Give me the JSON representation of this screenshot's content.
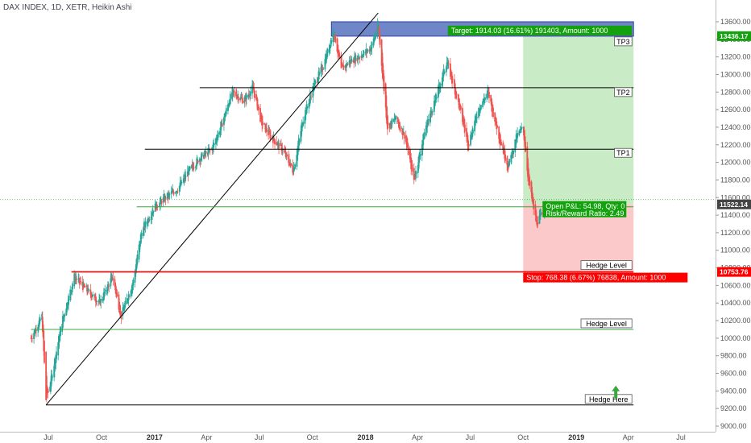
{
  "symbol_title": "DAX INDEX, 1D, XETR, Heikin Ashi",
  "chart_data": {
    "type": "candlestick",
    "title": "DAX INDEX, 1D, XETR, Heikin Ashi",
    "ylim": [
      9000,
      13800
    ],
    "x_months": [
      "Jul",
      "Oct",
      "2017",
      "Apr",
      "Jul",
      "Oct",
      "2018",
      "Apr",
      "Jul",
      "Oct",
      "2019",
      "Apr",
      "Jul"
    ],
    "y_ticks": [
      9000,
      9200,
      9400,
      9600,
      9800,
      10000,
      10200,
      10400,
      10600,
      10800,
      11000,
      11200,
      11400,
      11600,
      11800,
      12000,
      12200,
      12400,
      12600,
      12800,
      13000,
      13200,
      13400,
      13600
    ],
    "y_tick_labels": [
      "9000.00",
      "9200.00",
      "9400.00",
      "9600.00",
      "9800.00",
      "10000.00",
      "10200.00",
      "10400.00",
      "10600.00",
      "10800.00",
      "11000.00",
      "11200.00",
      "11400.00",
      "11600.00",
      "11800.00",
      "12000.00",
      "12200.00",
      "12400.00",
      "12600.00",
      "12800.00",
      "13000.00",
      "13200.00",
      "13400.00",
      "13600.00"
    ],
    "price_path": [
      [
        "2016-06-01",
        10000
      ],
      [
        "2016-06-20",
        10250
      ],
      [
        "2016-06-27",
        9300
      ],
      [
        "2016-07-05",
        9500
      ],
      [
        "2016-07-25",
        10200
      ],
      [
        "2016-08-15",
        10700
      ],
      [
        "2016-09-05",
        10550
      ],
      [
        "2016-09-28",
        10400
      ],
      [
        "2016-10-20",
        10700
      ],
      [
        "2016-11-04",
        10250
      ],
      [
        "2016-11-25",
        10650
      ],
      [
        "2016-12-09",
        11200
      ],
      [
        "2016-12-30",
        11480
      ],
      [
        "2017-01-20",
        11600
      ],
      [
        "2017-02-10",
        11700
      ],
      [
        "2017-03-01",
        11900
      ],
      [
        "2017-03-20",
        12050
      ],
      [
        "2017-04-10",
        12150
      ],
      [
        "2017-04-28",
        12450
      ],
      [
        "2017-05-15",
        12800
      ],
      [
        "2017-06-05",
        12700
      ],
      [
        "2017-06-20",
        12850
      ],
      [
        "2017-07-05",
        12450
      ],
      [
        "2017-07-20",
        12300
      ],
      [
        "2017-08-10",
        12150
      ],
      [
        "2017-08-29",
        11900
      ],
      [
        "2017-09-15",
        12500
      ],
      [
        "2017-10-05",
        12900
      ],
      [
        "2017-10-20",
        13100
      ],
      [
        "2017-11-07",
        13500
      ],
      [
        "2017-11-20",
        13050
      ],
      [
        "2017-12-05",
        13150
      ],
      [
        "2017-12-20",
        13200
      ],
      [
        "2018-01-10",
        13300
      ],
      [
        "2018-01-23",
        13550
      ],
      [
        "2018-02-08",
        12400
      ],
      [
        "2018-02-22",
        12500
      ],
      [
        "2018-03-10",
        12300
      ],
      [
        "2018-03-26",
        11800
      ],
      [
        "2018-04-15",
        12400
      ],
      [
        "2018-05-01",
        12700
      ],
      [
        "2018-05-22",
        13150
      ],
      [
        "2018-06-10",
        12700
      ],
      [
        "2018-06-28",
        12200
      ],
      [
        "2018-07-15",
        12600
      ],
      [
        "2018-08-01",
        12800
      ],
      [
        "2018-08-20",
        12300
      ],
      [
        "2018-09-05",
        11950
      ],
      [
        "2018-09-20",
        12300
      ],
      [
        "2018-10-01",
        12400
      ],
      [
        "2018-10-10",
        11800
      ],
      [
        "2018-10-24",
        11300
      ],
      [
        "2018-11-01",
        11400
      ],
      [
        "2018-11-10",
        11520
      ]
    ],
    "levels": [
      {
        "label": "TP3",
        "price": 13436.17,
        "color": "#2d3fa0"
      },
      {
        "label": "TP2",
        "price": 12850,
        "color": "#000000"
      },
      {
        "label": "TP1",
        "price": 12150,
        "color": "#000000"
      },
      {
        "label": "Hedge Level",
        "price": 10753.76,
        "color": "#ff0000"
      },
      {
        "label": "Hedge Level",
        "price": 10100,
        "color": "#3ca53c"
      },
      {
        "label": "Hedge Here",
        "price": 9240,
        "color": "#000000"
      }
    ],
    "entry_price": 11522.14,
    "current_price": 11522.14,
    "current_price_label": "11522.14",
    "target_price_label": "13436.17",
    "stop_price_label": "10753.76",
    "target_text": "Target: 1914.03 (16.61%) 191403, Amount: 1000",
    "stop_text": "Stop: 768.38 (6.67%) 76838, Amount: 1000",
    "pnl_text": "Open P&L: 54.98, Qty: 0",
    "rr_text": "Risk/Reward Ratio: 2.49",
    "trendline": {
      "from": [
        "2016-06-27",
        9240
      ],
      "to": [
        "2018-01-23",
        13700
      ]
    },
    "zone_top": {
      "from": "2017-11-03",
      "to": "2019-04-10",
      "low": 13436.17,
      "high": 13600
    },
    "position": {
      "from": "2018-10-01",
      "to": "2019-04-10"
    },
    "colors": {
      "up": "#26a69a",
      "down": "#ef5350",
      "target_zone": "#c9ebc6",
      "stop_zone": "#fbc9c9",
      "target_tag": "#13a10e",
      "stop_tag": "#ff0000",
      "price_tag": "#444444"
    }
  }
}
